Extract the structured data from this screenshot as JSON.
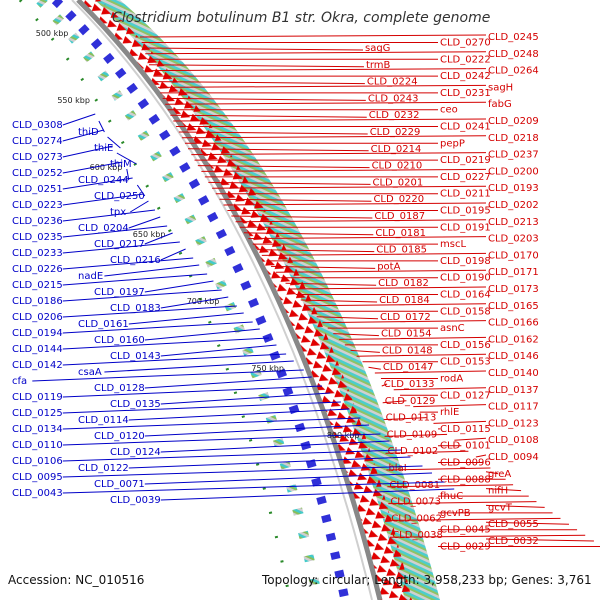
{
  "header": {
    "title": "Clostridium botulinum B1 str. Okra, complete genome"
  },
  "footer": {
    "accession": "Accession: NC_010516",
    "topology": "Topology: circular; Length: 3,958,233 bp; Genes: 3,761"
  },
  "colors": {
    "forward_label": "#d40000",
    "reverse_label": "#0000c8",
    "backbone": "#888888",
    "gc_marker": "#2a8a2a"
  },
  "axis": {
    "ticks": [
      "500 kbp",
      "550 kbp",
      "600 kbp",
      "650 kbp",
      "700 kbp",
      "750 kbp",
      "800 kbp"
    ]
  },
  "forward_labels": [
    "CLD_0245",
    "CLD_0270",
    "sagG",
    "CLD_0248",
    "CLD_0222",
    "trmB",
    "CLD_0264",
    "CLD_0242",
    "CLD_0224",
    "sagH",
    "CLD_0231",
    "CLD_0243",
    "fabG",
    "ceo",
    "CLD_0232",
    "CLD_0209",
    "CLD_0241",
    "CLD_0229",
    "CLD_0218",
    "pepP",
    "CLD_0214",
    "CLD_0237",
    "CLD_0219",
    "CLD_0210",
    "CLD_0200",
    "CLD_0227",
    "CLD_0201",
    "CLD_0193",
    "CLD_0211",
    "CLD_0220",
    "CLD_0202",
    "CLD_0195",
    "CLD_0187",
    "CLD_0213",
    "CLD_0191",
    "CLD_0181",
    "CLD_0203",
    "mscL",
    "CLD_0185",
    "CLD_0170",
    "CLD_0198",
    "potA",
    "CLD_0171",
    "CLD_0190",
    "CLD_0182",
    "CLD_0173",
    "CLD_0164",
    "CLD_0184",
    "CLD_0165",
    "CLD_0158",
    "CLD_0172",
    "CLD_0166",
    "asnC",
    "CLD_0154",
    "CLD_0162",
    "CLD_0156",
    "CLD_0148",
    "CLD_0146",
    "CLD_0153",
    "CLD_0147",
    "CLD_0140",
    "rodA",
    "CLD_0133",
    "CLD_0137",
    "CLD_0127",
    "CLD_0129",
    "CLD_0117",
    "rhlE",
    "CLD_0113",
    "CLD_0123",
    "CLD_0115",
    "CLD_0109",
    "CLD_0108",
    "CLD_0101",
    "CLD_0102",
    "CLD_0094",
    "CLD_0096",
    "blaI",
    "greA",
    "CLD_0088",
    "CLD_0081",
    "nifH",
    "fhuC",
    "CLD_0073",
    "gcvT",
    "gcvPB",
    "CLD_0062",
    "CLD_0055",
    "CLD_0045",
    "CLD_0038",
    "CLD_0032",
    "CLD_0029"
  ],
  "reverse_labels": [
    "CLD_0308",
    "thiD",
    "CLD_0274",
    "thiE",
    "CLD_0273",
    "thiM",
    "CLD_0252",
    "CLD_0244",
    "CLD_0251",
    "CLD_0250",
    "CLD_0223",
    "tpx",
    "CLD_0236",
    "CLD_0204",
    "CLD_0235",
    "CLD_0217",
    "CLD_0233",
    "CLD_0216",
    "CLD_0226",
    "nadE",
    "CLD_0215",
    "CLD_0197",
    "CLD_0186",
    "CLD_0183",
    "CLD_0206",
    "CLD_0161",
    "CLD_0194",
    "CLD_0160",
    "CLD_0144",
    "CLD_0143",
    "CLD_0142",
    "csaA",
    "cfa",
    "CLD_0128",
    "CLD_0119",
    "CLD_0135",
    "CLD_0125",
    "CLD_0114",
    "CLD_0134",
    "CLD_0120",
    "CLD_0110",
    "CLD_0124",
    "CLD_0106",
    "CLD_0122",
    "CLD_0095",
    "CLD_0071",
    "CLD_0043",
    "CLD_0039"
  ]
}
